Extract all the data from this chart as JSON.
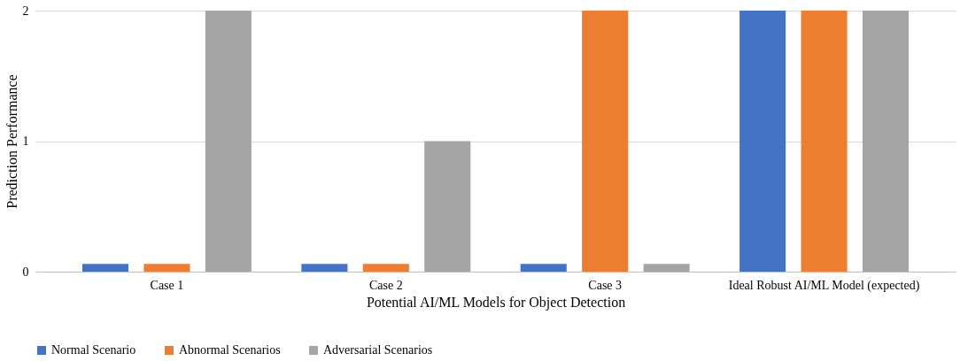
{
  "chart_data": {
    "type": "bar",
    "xlabel": "Potential AI/ML Models for Object Detection",
    "ylabel": "Prediction Performance",
    "categories": [
      "Case 1",
      "Case 2",
      "Case 3",
      "Ideal Robust AI/ML Model (expected)"
    ],
    "series": [
      {
        "name": "Normal Scenario",
        "color": "#4472c4",
        "values": [
          0.06,
          0.06,
          0.06,
          2
        ]
      },
      {
        "name": "Abnormal Scenarios",
        "color": "#ed7d31",
        "values": [
          0.06,
          0.06,
          2,
          2
        ]
      },
      {
        "name": "Adversarial Scenarios",
        "color": "#a5a5a5",
        "values": [
          2,
          1,
          0.06,
          2
        ]
      }
    ],
    "ylim": [
      0,
      2
    ],
    "yticks": [
      0,
      1,
      2
    ],
    "grid": "y",
    "legend": "bottom"
  }
}
